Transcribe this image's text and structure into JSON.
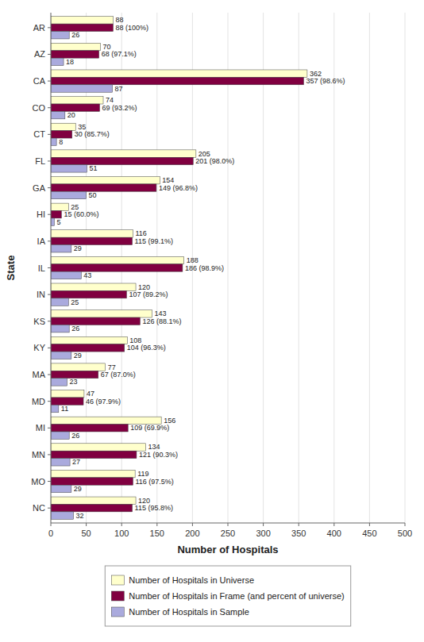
{
  "chart_data": {
    "type": "bar",
    "orientation": "horizontal",
    "xlabel": "Number of Hospitals",
    "ylabel": "State",
    "categories": [
      "AR",
      "AZ",
      "CA",
      "CO",
      "CT",
      "FL",
      "GA",
      "HI",
      "IA",
      "IL",
      "IN",
      "KS",
      "KY",
      "MA",
      "MD",
      "MI",
      "MN",
      "MO",
      "NC"
    ],
    "series": [
      {
        "name": "Number of Hospitals in Universe",
        "color": "#FFFFCC",
        "values": [
          88,
          70,
          362,
          74,
          35,
          205,
          154,
          25,
          116,
          188,
          120,
          143,
          108,
          77,
          47,
          156,
          134,
          119,
          120
        ]
      },
      {
        "name": "Number of Hospitals in Frame (and percent of universe)",
        "color": "#800040",
        "values": [
          88,
          68,
          357,
          69,
          30,
          201,
          149,
          15,
          115,
          186,
          107,
          126,
          104,
          67,
          46,
          109,
          121,
          116,
          115
        ],
        "value_labels": [
          "88 (100%)",
          "68 (97.1%)",
          "357 (98.6%)",
          "69 (93.2%)",
          "30 (85.7%)",
          "201 (98.0%)",
          "149 (96.8%)",
          "15 (60.0%)",
          "115 (99.1%)",
          "186 (98.9%)",
          "107 (89.2%)",
          "126 (88.1%)",
          "104 (96.3%)",
          "67 (87.0%)",
          "46 (97.9%)",
          "109 (69.9%)",
          "121 (90.3%)",
          "116 (97.5%)",
          "115 (95.8%)"
        ]
      },
      {
        "name": "Number of Hospitals in Sample",
        "color": "#AAAADD",
        "values": [
          26,
          18,
          87,
          20,
          8,
          51,
          50,
          5,
          29,
          43,
          25,
          26,
          29,
          23,
          11,
          26,
          27,
          29,
          32
        ]
      }
    ],
    "xlim": [
      0,
      500
    ],
    "xticks": [
      0,
      50,
      100,
      150,
      200,
      250,
      300,
      350,
      400,
      450,
      500
    ],
    "grid": true,
    "data_labels": true,
    "legend": "bottom"
  }
}
